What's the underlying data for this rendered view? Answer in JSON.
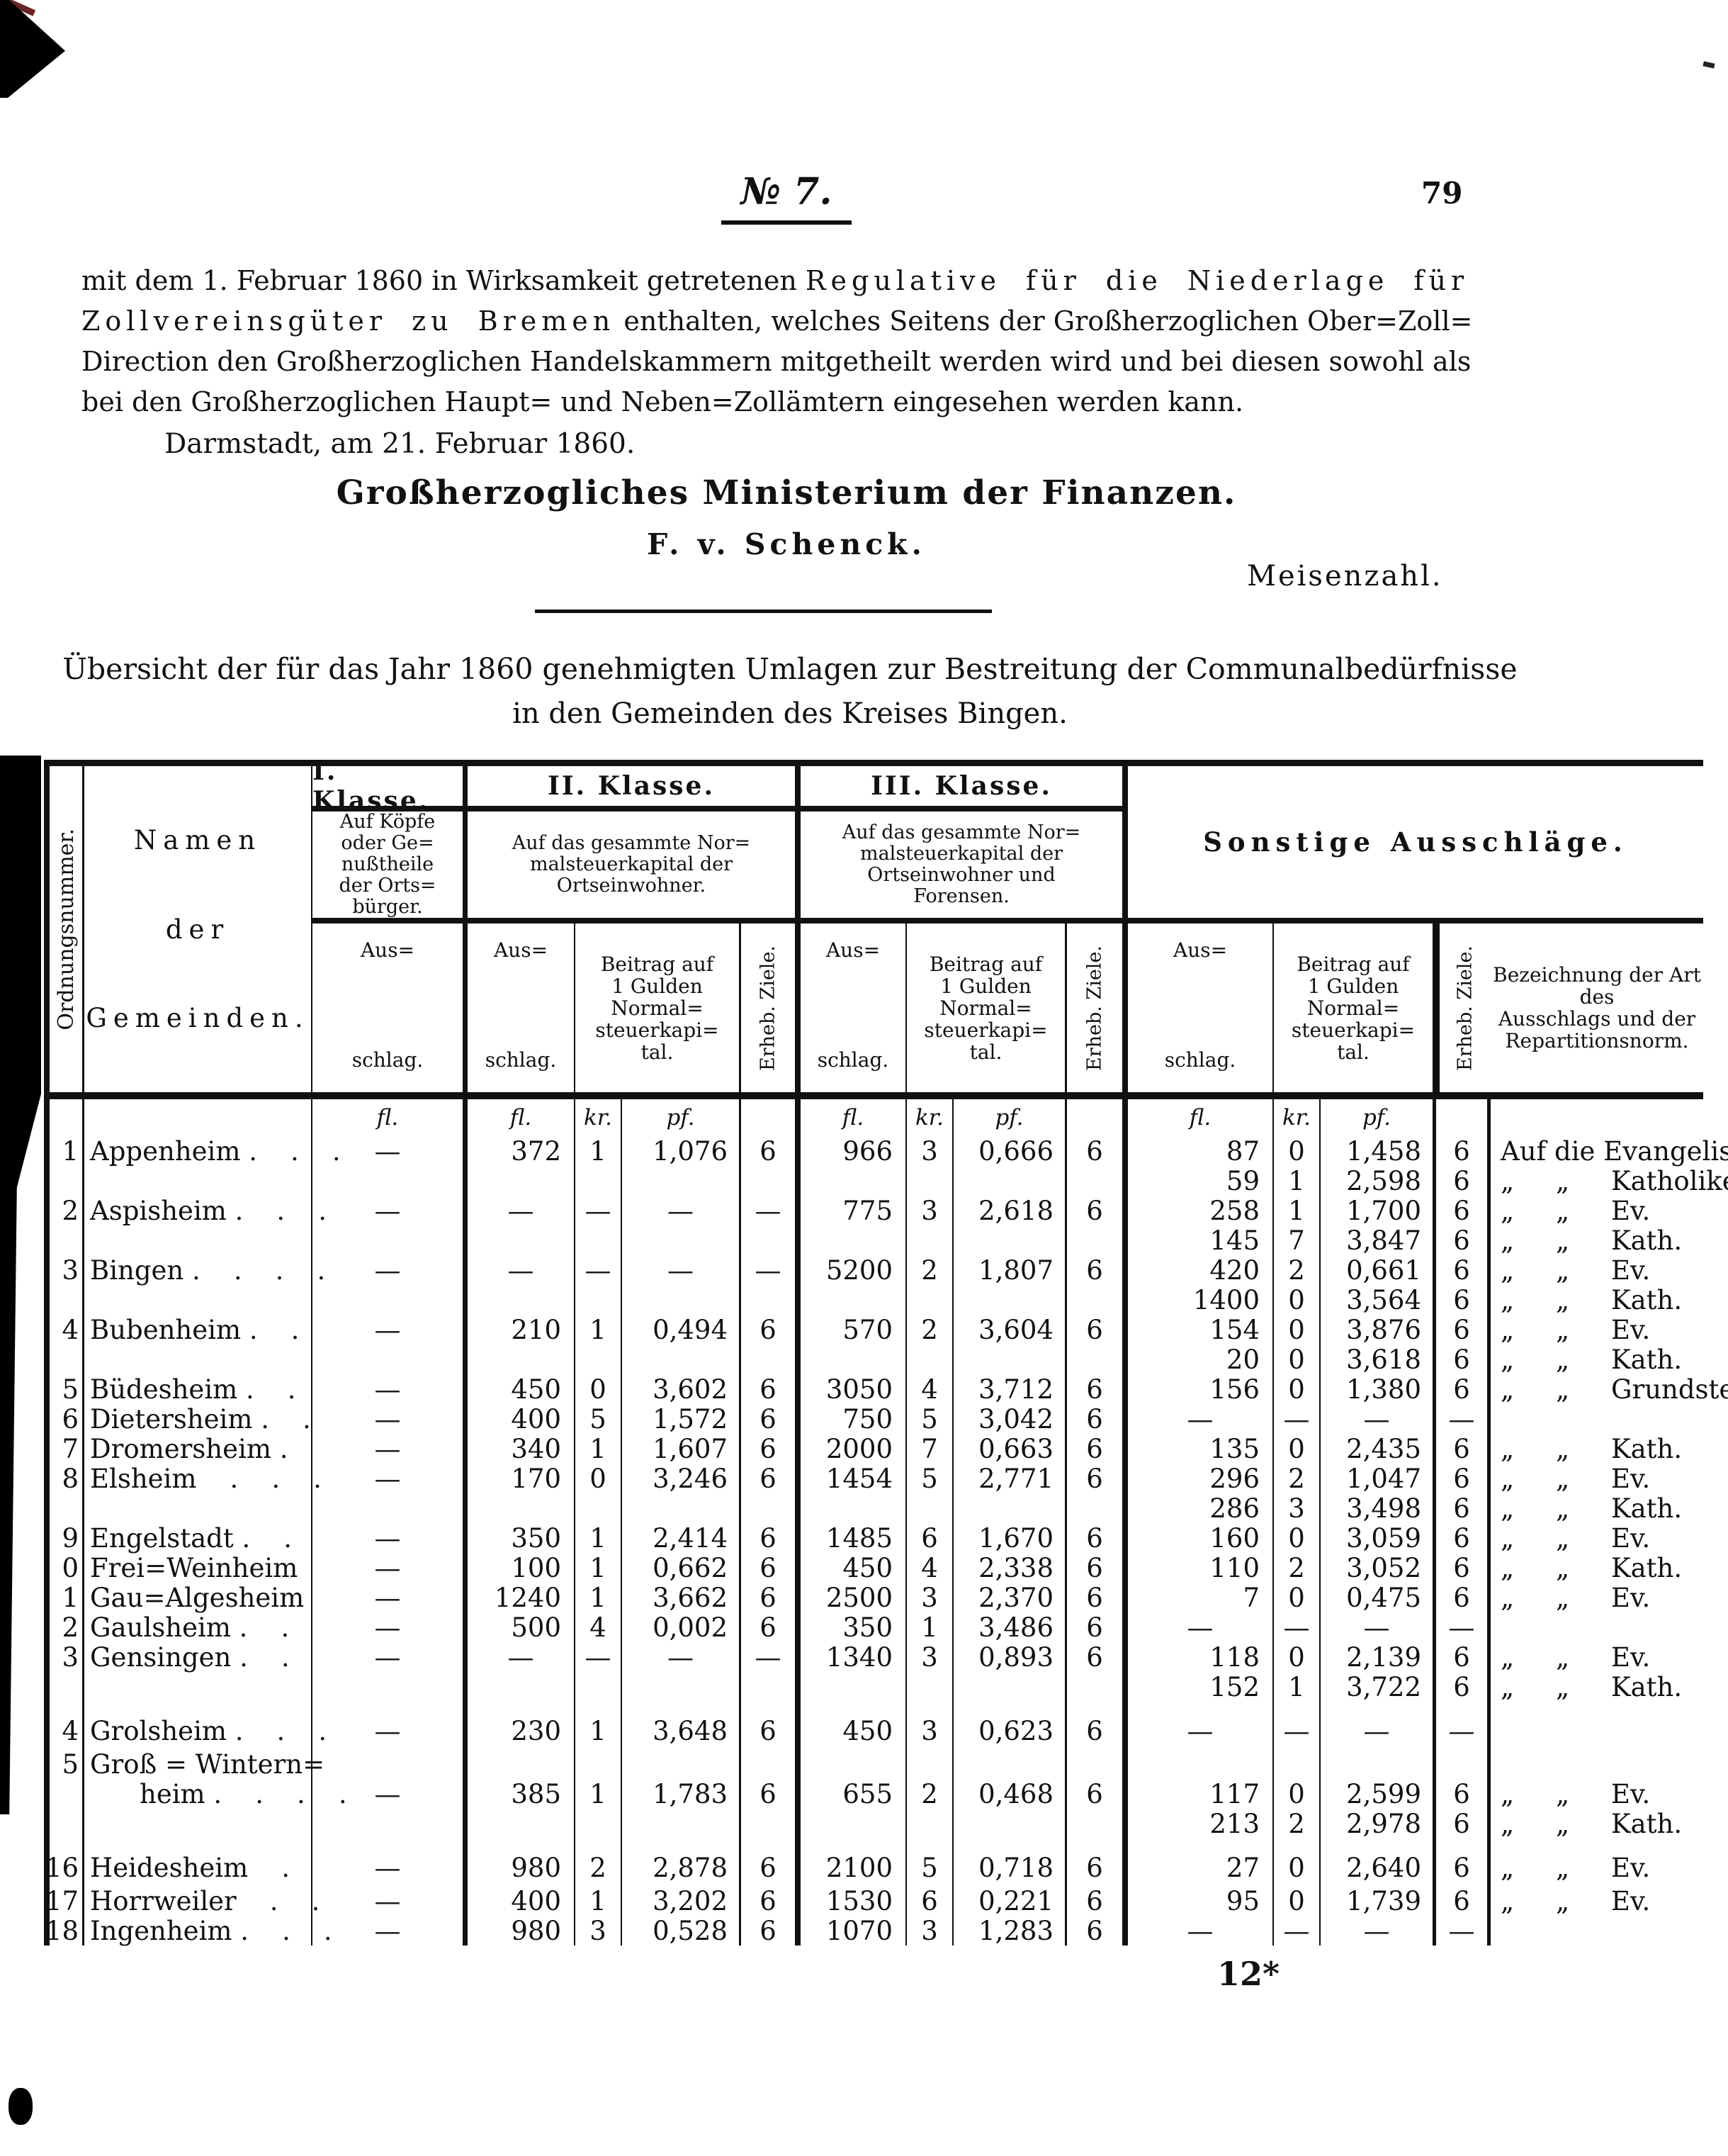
{
  "page": {
    "issue_label": "№ 7.",
    "page_number": "79",
    "paragraph": [
      [
        {
          "t": "mit dem 1. Februar 1860 in Wirksamkeit getretenen ",
          "sp": false
        },
        {
          "t": "Regulative für die Niederlage für",
          "sp": true
        }
      ],
      [
        {
          "t": "Zollvereinsgüter zu Bremen",
          "sp": true
        },
        {
          "t": " enthalten, welches Seitens der Großherzoglichen Ober=Zoll=",
          "sp": false
        }
      ],
      [
        {
          "t": "Direction den Großherzoglichen Handelskammern mitgetheilt werden wird und bei diesen sowohl als",
          "sp": false
        }
      ],
      [
        {
          "t": "bei den Großherzoglichen Haupt= und Neben=Zollämtern eingesehen werden kann.",
          "sp": false
        }
      ]
    ],
    "dateline": "Darmstadt, am 21. Februar 1860.",
    "ministry": "Großherzogliches Ministerium der Finanzen.",
    "signature": "F. v. Schenck.",
    "countersignature": "Meisenzahl.",
    "footer_mark": "12*"
  },
  "table": {
    "title_line1": "Übersicht der für das Jahr 1860 genehmigten Umlagen zur Bestreitung der Communalbedürfnisse",
    "title_line2": "in den Gemeinden des Kreises Bingen.",
    "ord_label": "Ordnungsnummer.",
    "name_header": [
      "Namen",
      "der",
      "Gemeinden."
    ],
    "k1_title": "I. Klasse.",
    "k1_desc": "Auf Köpfe\noder Ge=\nnußtheile\nder Orts=\nbürger.",
    "k2_title": "II. Klasse.",
    "k2_desc": "Auf das gesammte Nor=\nmalsteuerkapital der\nOrtseinwohner.",
    "k3_title": "III. Klasse.",
    "k3_desc": "Auf das gesammte Nor=\nmalsteuerkapital der\nOrtseinwohner und\nForensen.",
    "s_title": "Sonstige Ausschläge.",
    "col_aus1": "Aus=",
    "col_aus2": "schlag.",
    "col_beitrag": "Beitrag auf\n1 Gulden\nNormal=\nsteuerkapi=\ntal.",
    "col_ziele": "Erheb. Ziele.",
    "col_bez": "Bezeichnung der Art des\nAusschlags und der\nRepartitionsnorm.",
    "unit_fl": "fl.",
    "unit_kr": "kr.",
    "unit_pf": "pf.",
    "rows": [
      {
        "n": "1",
        "nm": "Appenheim .    .    .",
        "k1": "—",
        "a": [
          "372",
          "1",
          "1,076",
          "6"
        ],
        "b": [
          "966",
          "3",
          "0,666",
          "6"
        ],
        "s": [
          "87",
          "0",
          "1,458",
          "6",
          "Auf die Evangelischen."
        ]
      },
      {
        "s": [
          "59",
          "1",
          "2,598",
          "6",
          "„     „     Katholiken."
        ]
      },
      {
        "n": "2",
        "nm": "Aspisheim .    .    .",
        "k1": "—",
        "a": [
          "—",
          "—",
          "—",
          "—"
        ],
        "b": [
          "775",
          "3",
          "2,618",
          "6"
        ],
        "s": [
          "258",
          "1",
          "1,700",
          "6",
          "„     „     Ev."
        ]
      },
      {
        "s": [
          "145",
          "7",
          "3,847",
          "6",
          "„     „     Kath."
        ]
      },
      {
        "n": "3",
        "nm": "Bingen .    .    .    .",
        "k1": "—",
        "a": [
          "—",
          "—",
          "—",
          "—"
        ],
        "b": [
          "5200",
          "2",
          "1,807",
          "6"
        ],
        "s": [
          "420",
          "2",
          "0,661",
          "6",
          "„     „     Ev."
        ]
      },
      {
        "s": [
          "1400",
          "0",
          "3,564",
          "6",
          "„     „     Kath."
        ]
      },
      {
        "n": "4",
        "nm": "Bubenheim .    .",
        "k1": "—",
        "a": [
          "210",
          "1",
          "0,494",
          "6"
        ],
        "b": [
          "570",
          "2",
          "3,604",
          "6"
        ],
        "s": [
          "154",
          "0",
          "3,876",
          "6",
          "„     „     Ev."
        ]
      },
      {
        "s": [
          "20",
          "0",
          "3,618",
          "6",
          "„     „     Kath."
        ]
      },
      {
        "n": "5",
        "nm": "Büdesheim .    .",
        "k1": "—",
        "a": [
          "450",
          "0",
          "3,602",
          "6"
        ],
        "b": [
          "3050",
          "4",
          "3,712",
          "6"
        ],
        "s": [
          "156",
          "0",
          "1,380",
          "6",
          "„     „     Grundsteuerkapitalien."
        ]
      },
      {
        "n": "6",
        "nm": "Dietersheim .    .",
        "k1": "—",
        "a": [
          "400",
          "5",
          "1,572",
          "6"
        ],
        "b": [
          "750",
          "5",
          "3,042",
          "6"
        ],
        "s": [
          "—",
          "—",
          "—",
          "—",
          ""
        ]
      },
      {
        "n": "7",
        "nm": "Dromersheim .",
        "k1": "—",
        "a": [
          "340",
          "1",
          "1,607",
          "6"
        ],
        "b": [
          "2000",
          "7",
          "0,663",
          "6"
        ],
        "s": [
          "135",
          "0",
          "2,435",
          "6",
          "„     „     Kath."
        ]
      },
      {
        "n": "8",
        "nm": "Elsheim    .    .    .",
        "k1": "—",
        "a": [
          "170",
          "0",
          "3,246",
          "6"
        ],
        "b": [
          "1454",
          "5",
          "2,771",
          "6"
        ],
        "s": [
          "296",
          "2",
          "1,047",
          "6",
          "„     „     Ev."
        ]
      },
      {
        "s": [
          "286",
          "3",
          "3,498",
          "6",
          "„     „     Kath."
        ]
      },
      {
        "n": "9",
        "nm": "Engelstadt .    .",
        "k1": "—",
        "a": [
          "350",
          "1",
          "2,414",
          "6"
        ],
        "b": [
          "1485",
          "6",
          "1,670",
          "6"
        ],
        "s": [
          "160",
          "0",
          "3,059",
          "6",
          "„     „     Ev."
        ]
      },
      {
        "n": "0",
        "nm": "Frei=Weinheim",
        "k1": "—",
        "a": [
          "100",
          "1",
          "0,662",
          "6"
        ],
        "b": [
          "450",
          "4",
          "2,338",
          "6"
        ],
        "s": [
          "110",
          "2",
          "3,052",
          "6",
          "„     „     Kath."
        ]
      },
      {
        "n": "1",
        "nm": "Gau=Algesheim",
        "k1": "—",
        "a": [
          "1240",
          "1",
          "3,662",
          "6"
        ],
        "b": [
          "2500",
          "3",
          "2,370",
          "6"
        ],
        "s": [
          "7",
          "0",
          "0,475",
          "6",
          "„     „     Ev."
        ]
      },
      {
        "n": "2",
        "nm": "Gaulsheim .    .",
        "k1": "—",
        "a": [
          "500",
          "4",
          "0,002",
          "6"
        ],
        "b": [
          "350",
          "1",
          "3,486",
          "6"
        ],
        "s": [
          "—",
          "—",
          "—",
          "—",
          ""
        ]
      },
      {
        "n": "3",
        "nm": "Gensingen .    .",
        "k1": "—",
        "a": [
          "—",
          "—",
          "—",
          "—"
        ],
        "b": [
          "1340",
          "3",
          "0,893",
          "6"
        ],
        "s": [
          "118",
          "0",
          "2,139",
          "6",
          "„     „     Ev."
        ]
      },
      {
        "s": [
          "152",
          "1",
          "3,722",
          "6",
          "„     „     Kath."
        ]
      },
      {
        "gap": 1,
        "n": "4",
        "nm": "Grolsheim .    .    .",
        "k1": "—",
        "a": [
          "230",
          "1",
          "3,648",
          "6"
        ],
        "b": [
          "450",
          "3",
          "0,623",
          "6"
        ],
        "s": [
          "—",
          "—",
          "—",
          "—",
          ""
        ]
      },
      {
        "n": "5",
        "nm": "Groß = Wintern="
      },
      {
        "ind": 1,
        "nm": "heim .    .    .    .",
        "k1": "—",
        "a": [
          "385",
          "1",
          "1,783",
          "6"
        ],
        "b": [
          "655",
          "2",
          "0,468",
          "6"
        ],
        "s": [
          "117",
          "0",
          "2,599",
          "6",
          "„     „     Ev."
        ]
      },
      {
        "s": [
          "213",
          "2",
          "2,978",
          "6",
          "„     „     Kath."
        ]
      },
      {
        "gap": 1,
        "n": "16",
        "nm": "Heidesheim    .",
        "k1": "—",
        "a": [
          "980",
          "2",
          "2,878",
          "6"
        ],
        "b": [
          "2100",
          "5",
          "0,718",
          "6"
        ],
        "s": [
          "27",
          "0",
          "2,640",
          "6",
          "„     „     Ev."
        ]
      },
      {
        "n": "17",
        "nm": "Horrweiler    .    .",
        "k1": "—",
        "a": [
          "400",
          "1",
          "3,202",
          "6"
        ],
        "b": [
          "1530",
          "6",
          "0,221",
          "6"
        ],
        "s": [
          "95",
          "0",
          "1,739",
          "6",
          "„     „     Ev."
        ]
      },
      {
        "n": "18",
        "nm": "Ingenheim .    .    .",
        "k1": "—",
        "a": [
          "980",
          "3",
          "0,528",
          "6"
        ],
        "b": [
          "1070",
          "3",
          "1,283",
          "6"
        ],
        "s": [
          "—",
          "—",
          "—",
          "—",
          ""
        ]
      }
    ]
  }
}
